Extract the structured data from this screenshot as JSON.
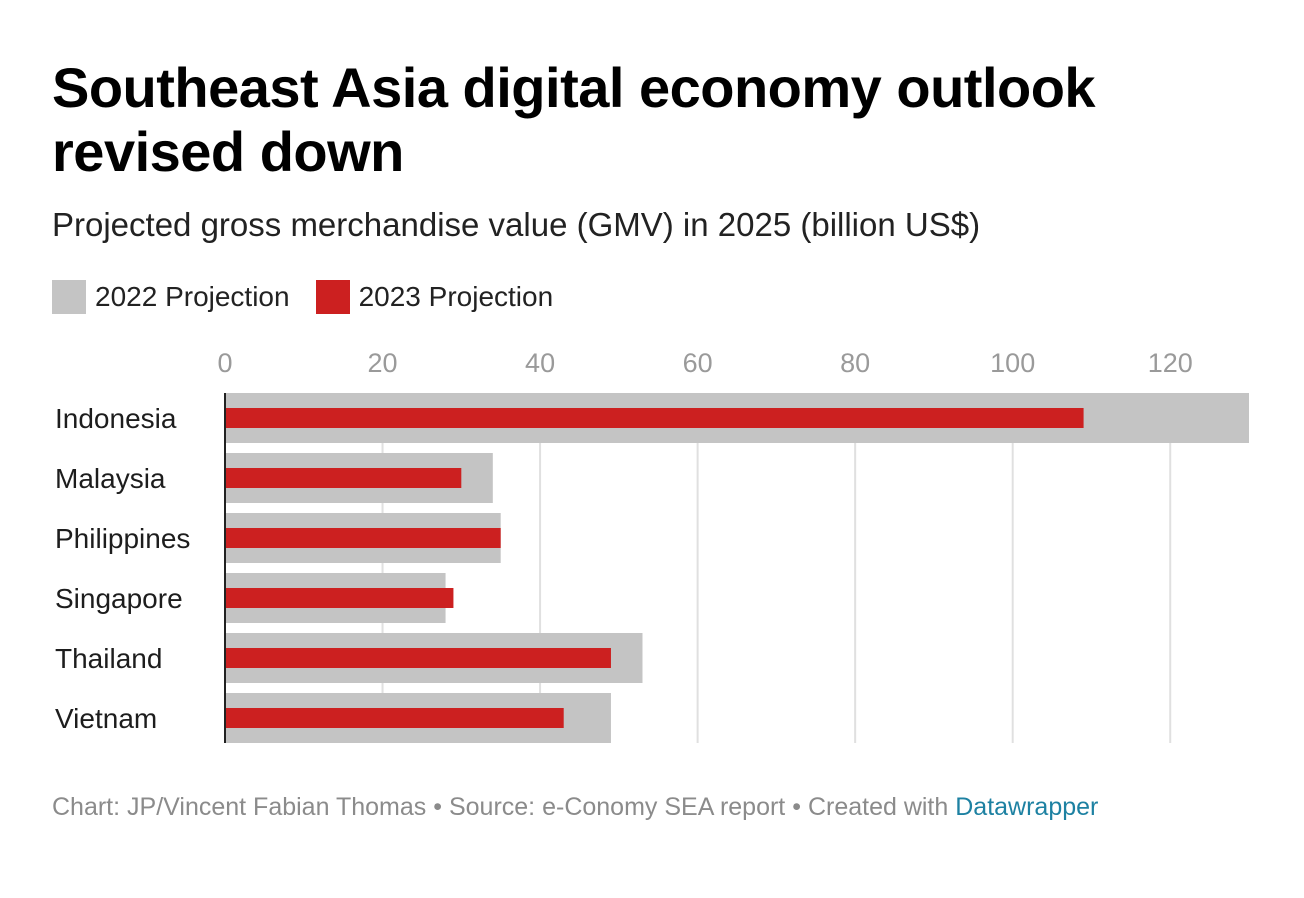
{
  "title": "Southeast Asia digital economy outlook revised down",
  "subtitle": "Projected gross merchandise value (GMV) in 2025 (billion US$)",
  "legend": [
    {
      "label": "2022 Projection",
      "color": "#c4c4c4"
    },
    {
      "label": "2023 Projection",
      "color": "#cc2020"
    }
  ],
  "footer": {
    "chart_label": "Chart:",
    "author": "JP/Vincent Fabian Thomas",
    "sep1": "•",
    "source_label": "Source:",
    "source": "e-Conomy SEA report",
    "sep2": "•",
    "created_with": "Created with",
    "tool": "Datawrapper"
  },
  "colors": {
    "projection_2022": "#c4c4c4",
    "projection_2023": "#cc2020",
    "axis_text": "#9a9a9a",
    "link": "#1d81a2"
  },
  "chart_data": {
    "type": "bar",
    "orientation": "horizontal",
    "title": "Southeast Asia digital economy outlook revised down",
    "subtitle": "Projected gross merchandise value (GMV) in 2025 (billion US$)",
    "categories": [
      "Indonesia",
      "Malaysia",
      "Philippines",
      "Singapore",
      "Thailand",
      "Vietnam"
    ],
    "series": [
      {
        "name": "2022 Projection",
        "values": [
          130,
          34,
          35,
          28,
          53,
          49
        ]
      },
      {
        "name": "2023 Projection",
        "values": [
          109,
          30,
          35,
          29,
          49,
          43
        ]
      }
    ],
    "xlim": [
      0,
      130
    ],
    "xticks": [
      0,
      20,
      40,
      60,
      80,
      100,
      120
    ],
    "xtick_position": "top",
    "grid": true,
    "legend_position": "top-left"
  }
}
